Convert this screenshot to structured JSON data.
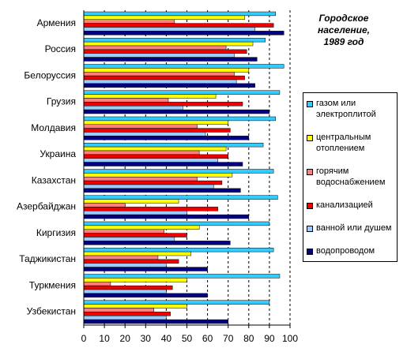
{
  "chart_data": {
    "type": "bar",
    "orientation": "horizontal",
    "title": "Городское население, 1989 год",
    "categories": [
      "Армения",
      "Россия",
      "Белоруссия",
      "Грузия",
      "Молдавия",
      "Украина",
      "Казахстан",
      "Азербайджан",
      "Киргизия",
      "Таджикистан",
      "Туркмения",
      "Узбекистан"
    ],
    "series": [
      {
        "name": "газом или электроплитой",
        "color": "#33ccff",
        "values": [
          93,
          88,
          97,
          95,
          93,
          87,
          92,
          94,
          90,
          92,
          95,
          90
        ]
      },
      {
        "name": "центральным отоплением",
        "color": "#ffff00",
        "values": [
          78,
          82,
          80,
          64,
          70,
          69,
          72,
          46,
          56,
          52,
          50,
          50
        ]
      },
      {
        "name": "горячим водоснабжением",
        "color": "#ff7f7f",
        "values": [
          44,
          69,
          73,
          41,
          55,
          56,
          55,
          20,
          39,
          36,
          13,
          34
        ]
      },
      {
        "name": "канализацией",
        "color": "#ee0000",
        "values": [
          92,
          79,
          78,
          77,
          71,
          70,
          67,
          65,
          50,
          46,
          43,
          42
        ]
      },
      {
        "name": "ванной или душем",
        "color": "#99ccff",
        "values": [
          83,
          73,
          74,
          48,
          59,
          65,
          63,
          50,
          44,
          40,
          40,
          40
        ]
      },
      {
        "name": "водопроводом",
        "color": "#000080",
        "values": [
          97,
          84,
          83,
          90,
          80,
          77,
          76,
          80,
          71,
          60,
          60,
          70
        ]
      }
    ],
    "xlim": [
      0,
      100
    ],
    "xticks": [
      0,
      10,
      20,
      30,
      40,
      50,
      60,
      70,
      80,
      90,
      100
    ],
    "grid": true
  }
}
